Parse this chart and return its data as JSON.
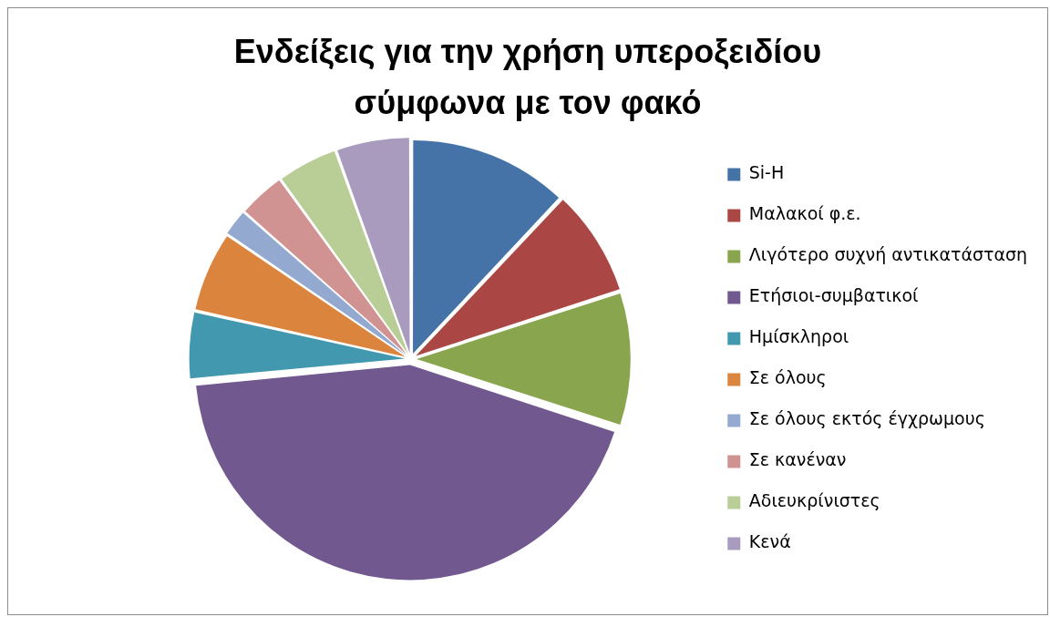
{
  "chart_data": {
    "type": "pie",
    "title": "Ενδείξεις για την χρήση υπεροξειδίου σύμφωνα με τον φακό",
    "categories": [
      "Si-H",
      "Μαλακοί φ.ε.",
      "Λιγότερο συχνή αντικατάσταση",
      "Ετήσιοι-συμβατικοί",
      "Ημίσκληροι",
      "Σε όλους",
      "Σε όλους εκτός έγχρωμους",
      "Σε κανέναν",
      "Αδιευκρίνιστες",
      "Κενά"
    ],
    "values": [
      12,
      8,
      10,
      43.5,
      5,
      6,
      2,
      3.5,
      4.5,
      5.5
    ],
    "colors": [
      "#4572a7",
      "#aa4643",
      "#89a54e",
      "#71588f",
      "#4198af",
      "#db843d",
      "#93a9cf",
      "#d19392",
      "#b9cd96",
      "#a99bbd"
    ],
    "legend": "right"
  }
}
